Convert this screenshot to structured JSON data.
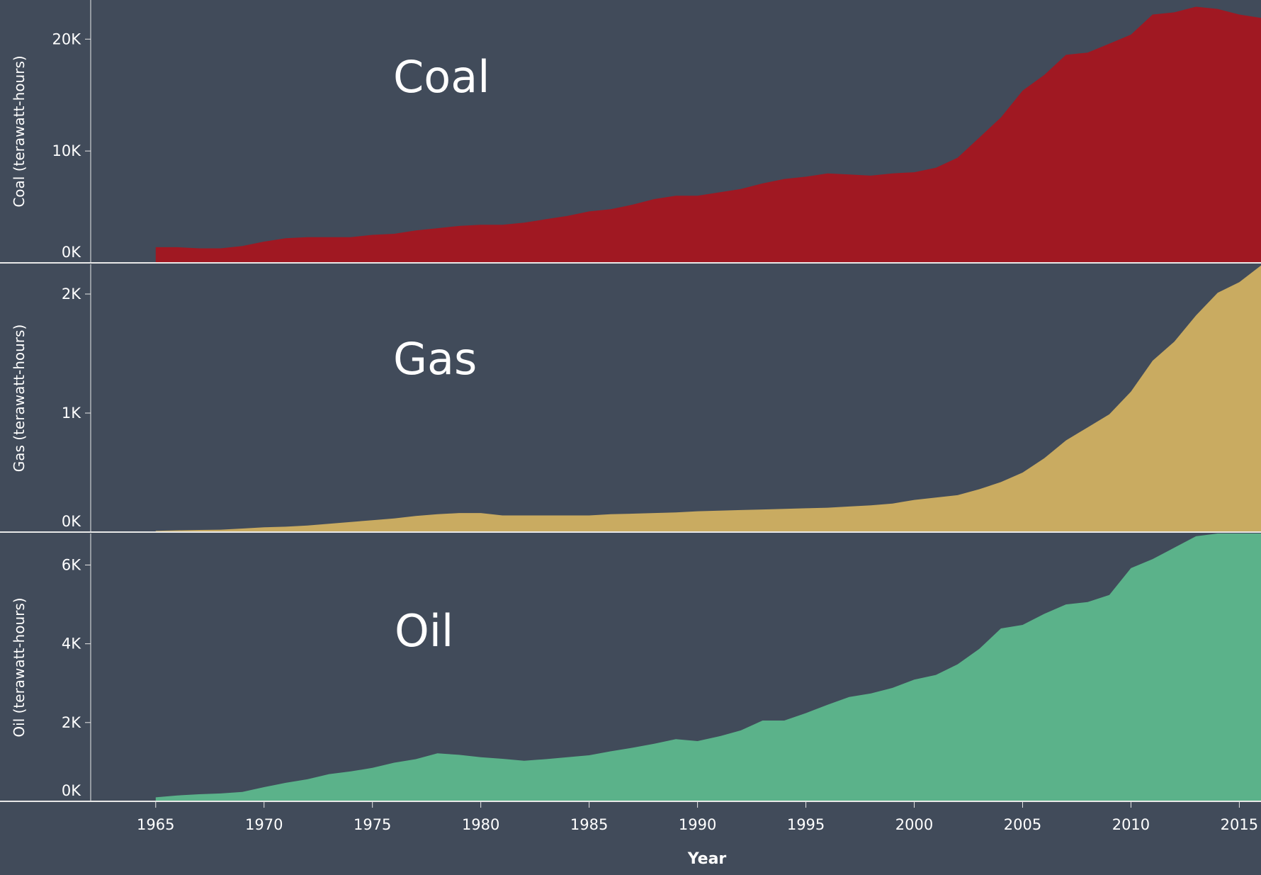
{
  "colors": {
    "background": "#414b5a",
    "coal": "#a01822",
    "gas": "#c9ab61",
    "oil": "#5bb28a",
    "axis": "#e8e8e8",
    "text": "#ffffff"
  },
  "chart_data": {
    "type": "area",
    "xlabel": "Year",
    "x_ticks": [
      1965,
      1970,
      1975,
      1980,
      1985,
      1990,
      1995,
      2000,
      2005,
      2010,
      2015
    ],
    "xlim": [
      1962,
      2016
    ],
    "x": [
      1965,
      1966,
      1967,
      1968,
      1969,
      1970,
      1971,
      1972,
      1973,
      1974,
      1975,
      1976,
      1977,
      1978,
      1979,
      1980,
      1981,
      1982,
      1983,
      1984,
      1985,
      1986,
      1987,
      1988,
      1989,
      1990,
      1991,
      1992,
      1993,
      1994,
      1995,
      1996,
      1997,
      1998,
      1999,
      2000,
      2001,
      2002,
      2003,
      2004,
      2005,
      2006,
      2007,
      2008,
      2009,
      2010,
      2011,
      2012,
      2013,
      2014,
      2015,
      2016
    ],
    "panels": [
      {
        "name": "Coal",
        "ylabel": "Coal (terawatt-hours)",
        "ylim": [
          0,
          23500
        ],
        "y_ticks": [
          0,
          10000,
          20000
        ],
        "y_tick_labels": [
          "0K",
          "10K",
          "20K"
        ],
        "color_key": "coal",
        "values": [
          1400,
          1400,
          1300,
          1300,
          1500,
          1900,
          2200,
          2300,
          2300,
          2300,
          2500,
          2600,
          2900,
          3100,
          3300,
          3400,
          3400,
          3600,
          3900,
          4200,
          4600,
          4800,
          5200,
          5700,
          6000,
          6000,
          6300,
          6600,
          7100,
          7500,
          7700,
          8000,
          7900,
          7800,
          8000,
          8100,
          8500,
          9400,
          11200,
          13000,
          15400,
          16800,
          18600,
          18800,
          19600,
          20400,
          22200,
          22400,
          22900,
          22700,
          22200,
          21900
        ]
      },
      {
        "name": "Gas",
        "ylabel": "Gas (terawatt-hours)",
        "ylim": [
          0,
          2250
        ],
        "y_ticks": [
          0,
          1000,
          2000
        ],
        "y_tick_labels": [
          "0K",
          "1K",
          "2K"
        ],
        "color_key": "gas",
        "values": [
          10,
          15,
          18,
          20,
          30,
          40,
          45,
          55,
          70,
          85,
          100,
          115,
          135,
          150,
          160,
          160,
          140,
          140,
          140,
          140,
          140,
          150,
          155,
          160,
          165,
          175,
          180,
          185,
          190,
          195,
          200,
          205,
          215,
          225,
          240,
          270,
          290,
          310,
          360,
          420,
          500,
          620,
          770,
          880,
          990,
          1180,
          1440,
          1600,
          1820,
          2010,
          2100,
          2240
        ]
      },
      {
        "name": "Oil",
        "ylabel": "Oil (terawatt-hours)",
        "ylim": [
          0,
          6800
        ],
        "y_ticks": [
          0,
          2000,
          4000,
          6000
        ],
        "y_tick_labels": [
          "0K",
          "2K",
          "4K",
          "6K"
        ],
        "color_key": "oil",
        "values": [
          100,
          150,
          180,
          200,
          240,
          360,
          470,
          560,
          690,
          760,
          850,
          980,
          1070,
          1220,
          1180,
          1120,
          1080,
          1030,
          1070,
          1120,
          1170,
          1270,
          1360,
          1460,
          1580,
          1530,
          1650,
          1800,
          2050,
          2050,
          2240,
          2450,
          2650,
          2740,
          2880,
          3090,
          3210,
          3480,
          3870,
          4390,
          4480,
          4760,
          5000,
          5060,
          5240,
          5920,
          6150,
          6440,
          6730,
          6960,
          7390,
          7580
        ]
      }
    ]
  }
}
